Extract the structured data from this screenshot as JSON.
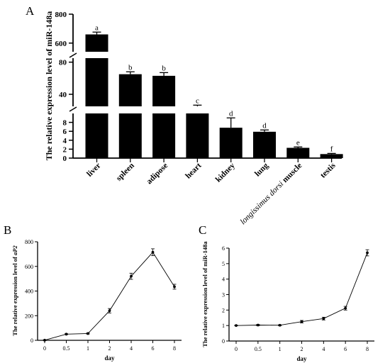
{
  "chart_data": [
    {
      "panel": "A",
      "type": "bar",
      "ylabel": "The relative expression level of miR-148a",
      "categories": [
        "liver",
        "spleen",
        "adipose",
        "heart",
        "kidney",
        "lung",
        "longissimus dorsi muscle",
        "testis"
      ],
      "category_display": [
        {
          "text": "liver"
        },
        {
          "text": "spleen"
        },
        {
          "text": "adipose"
        },
        {
          "text": "heart"
        },
        {
          "text": "kidney"
        },
        {
          "text": "lung"
        },
        {
          "italic": "longissimus dorsi",
          "rest": " muscle"
        },
        {
          "text": "testis"
        }
      ],
      "values": [
        660,
        65,
        63,
        25,
        6.8,
        5.9,
        2.3,
        0.9
      ],
      "errors": [
        16,
        3,
        4,
        1.5,
        2.2,
        0.4,
        0.2,
        0.15
      ],
      "letters": [
        "a",
        "b",
        "b",
        "c",
        "d",
        "d",
        "e",
        "f"
      ],
      "y_segments": [
        {
          "range": [
            0,
            10
          ],
          "ticks": [
            0,
            2,
            4,
            6,
            8
          ]
        },
        {
          "range": [
            25,
            85
          ],
          "ticks": [
            40,
            80
          ]
        },
        {
          "range": [
            540,
            800
          ],
          "ticks": [
            600,
            800
          ]
        }
      ]
    },
    {
      "panel": "B",
      "type": "line",
      "ylabel_prefix": "The relative expression level of ",
      "ylabel_italic": "aP2",
      "xlabel": "day",
      "categories": [
        "0",
        "0.5",
        "1",
        "2",
        "4",
        "6",
        "8"
      ],
      "values": [
        1,
        50,
        55,
        240,
        520,
        715,
        435
      ],
      "errors": [
        2,
        3,
        4,
        18,
        25,
        28,
        20
      ],
      "ylim": [
        0,
        800
      ],
      "yticks": [
        0,
        200,
        400,
        600,
        800
      ]
    },
    {
      "panel": "C",
      "type": "line",
      "ylabel": "The relative expression level of miR-148a",
      "xlabel": "day",
      "categories": [
        "0",
        "0.5",
        "1",
        "2",
        "4",
        "6",
        "8"
      ],
      "values": [
        1.0,
        1.03,
        1.02,
        1.25,
        1.45,
        2.12,
        5.7
      ],
      "errors": [
        0.02,
        0.04,
        0.03,
        0.08,
        0.09,
        0.12,
        0.2
      ],
      "ylim": [
        0,
        6
      ],
      "yticks": [
        0,
        1,
        2,
        3,
        4,
        5,
        6
      ]
    }
  ]
}
